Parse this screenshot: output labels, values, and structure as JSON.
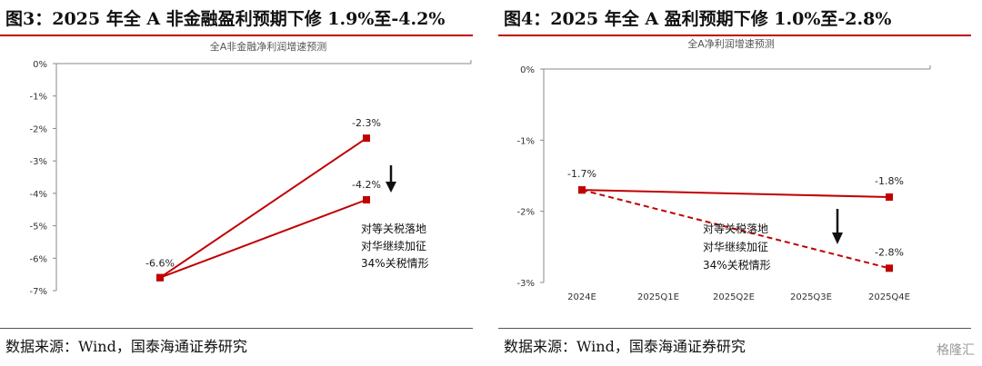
{
  "left": {
    "title": "图3：2025 年全 A 非金融盈利预期下修 1.9%至-4.2%",
    "source": "数据来源：Wind，国泰海通证券研究",
    "chart_data": {
      "type": "line",
      "title": "全A非金融净利润增速预测",
      "ylim": [
        -7,
        0
      ],
      "y_ticks": [
        "0%",
        "-1%",
        "-2%",
        "-3%",
        "-4%",
        "-5%",
        "-6%",
        "-7%"
      ],
      "x": [
        0,
        1
      ],
      "series": [
        {
          "values": [
            -6.6,
            -2.3
          ],
          "color": "#c00000",
          "style": "solid"
        },
        {
          "values": [
            -6.6,
            -4.2
          ],
          "color": "#c00000",
          "style": "solid"
        }
      ],
      "data_labels": [
        {
          "series": 0,
          "index": 0,
          "text": "-6.6%"
        },
        {
          "series": 0,
          "index": 1,
          "text": "-2.3%"
        },
        {
          "series": 1,
          "index": 1,
          "text": "-4.2%"
        }
      ],
      "annotation": {
        "lines": [
          "对等关税落地",
          "对华继续加征",
          "34%关税情形"
        ]
      },
      "grid": false
    }
  },
  "right": {
    "title": "图4：2025 年全 A 盈利预期下修 1.0%至-2.8%",
    "source": "数据来源：Wind，国泰海通证券研究",
    "chart_data": {
      "type": "line",
      "title": "全A净利润增速预测",
      "ylim": [
        -3,
        0
      ],
      "y_ticks": [
        "0%",
        "-1%",
        "-2%",
        "-3%"
      ],
      "categories": [
        "2024E",
        "2025Q1E",
        "2025Q2E",
        "2025Q3E",
        "2025Q4E"
      ],
      "series": [
        {
          "x": [
            "2024E",
            "2025Q4E"
          ],
          "values": [
            -1.7,
            -1.8
          ],
          "color": "#c00000",
          "style": "solid"
        },
        {
          "x": [
            "2024E",
            "2025Q4E"
          ],
          "values": [
            -1.7,
            -2.8
          ],
          "color": "#c00000",
          "style": "dashed"
        }
      ],
      "data_labels": [
        {
          "series": 0,
          "index": 0,
          "text": "-1.7%"
        },
        {
          "series": 0,
          "index": 1,
          "text": "-1.8%"
        },
        {
          "series": 1,
          "index": 1,
          "text": "-2.8%"
        }
      ],
      "annotation": {
        "lines": [
          "对等关税落地",
          "对华继续加征",
          "34%关税情形"
        ]
      },
      "grid": false
    }
  },
  "watermark": "格隆汇"
}
